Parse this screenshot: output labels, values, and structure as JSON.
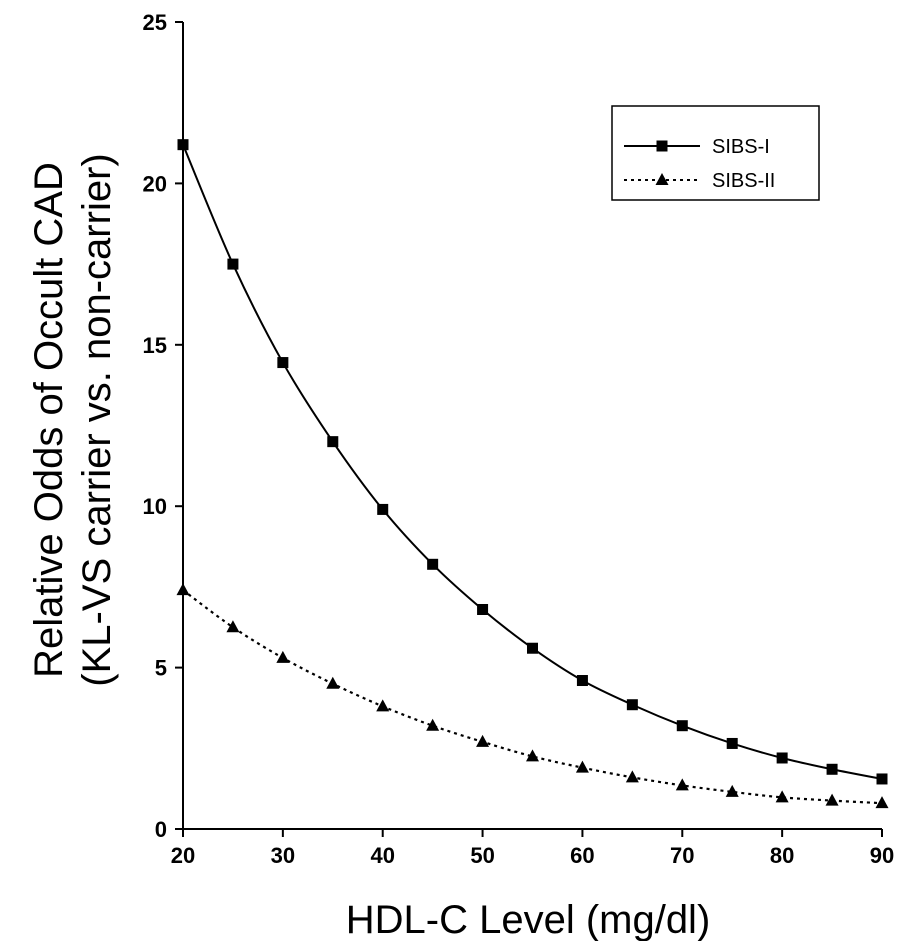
{
  "chart_data": {
    "type": "line",
    "title": "",
    "xlabel": "HDL-C Level (mg/dl)",
    "ylabel_line1": "Relative Odds of Occult CAD",
    "ylabel_line2": "(KL-VS carrier vs. non-carrier)",
    "xlim": [
      20,
      90
    ],
    "ylim": [
      0,
      25
    ],
    "x_ticks": [
      "20",
      "30",
      "40",
      "50",
      "60",
      "70",
      "80",
      "90"
    ],
    "y_ticks": [
      "0",
      "5",
      "10",
      "15",
      "20",
      "25"
    ],
    "grid": false,
    "legend_position": "top-right",
    "x": [
      20,
      25,
      30,
      35,
      40,
      45,
      50,
      55,
      60,
      65,
      70,
      75,
      80,
      85,
      90
    ],
    "series": [
      {
        "name": "SIBS-I",
        "marker": "square",
        "line_style": "solid",
        "color": "#000000",
        "values": [
          21.2,
          17.5,
          14.45,
          12.0,
          9.9,
          8.2,
          6.8,
          5.6,
          4.6,
          3.85,
          3.2,
          2.65,
          2.2,
          1.85,
          1.55
        ]
      },
      {
        "name": "SIBS-II",
        "marker": "triangle",
        "line_style": "dotted",
        "color": "#000000",
        "values": [
          7.4,
          6.25,
          5.3,
          4.5,
          3.8,
          3.2,
          2.7,
          2.25,
          1.9,
          1.6,
          1.35,
          1.15,
          0.98,
          0.88,
          0.8
        ]
      }
    ]
  }
}
